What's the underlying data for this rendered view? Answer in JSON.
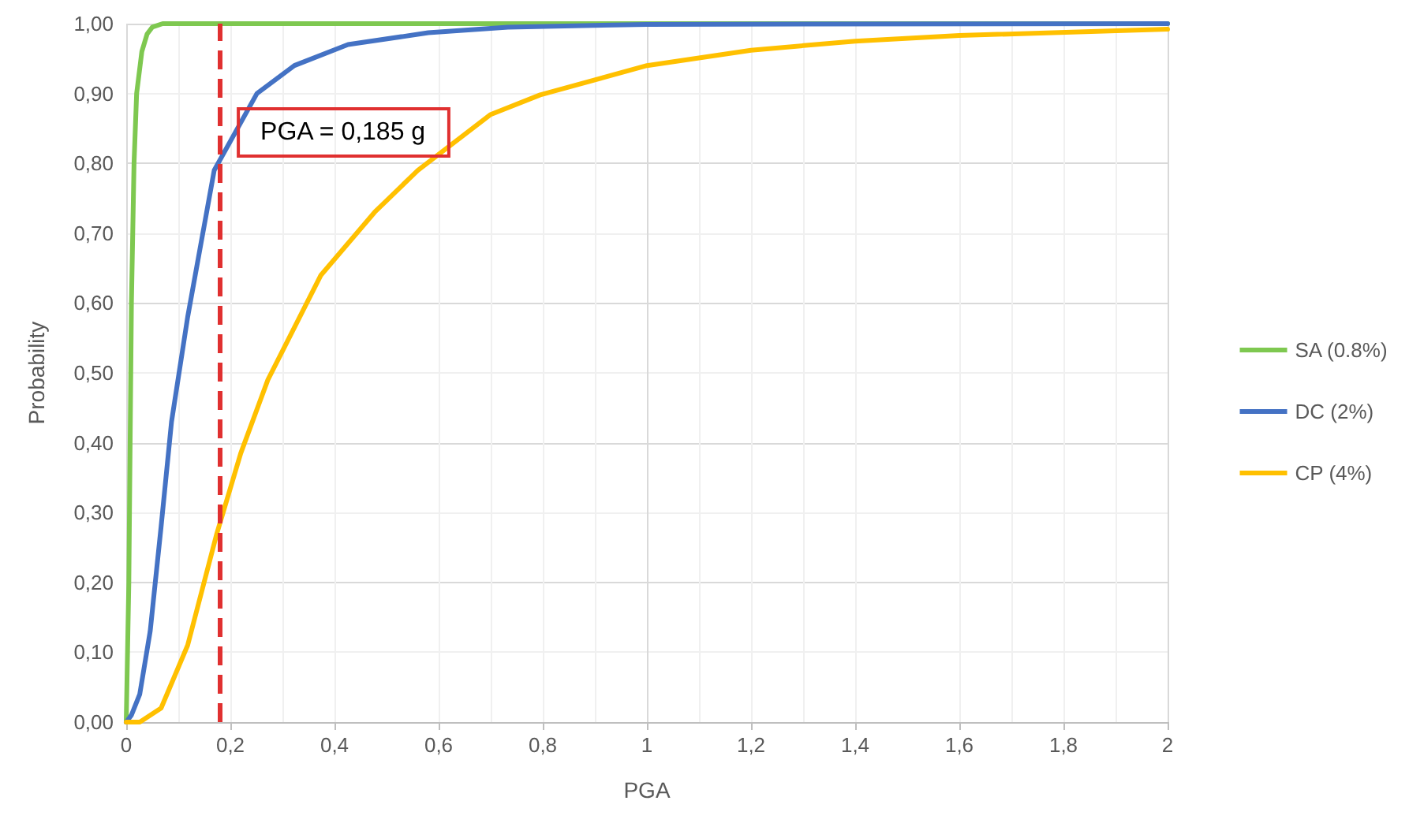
{
  "chart_data": {
    "type": "line",
    "xlabel": "PGA",
    "ylabel": "Probability",
    "xlim": [
      0,
      2
    ],
    "xticks": [
      0,
      {
        "value": 0.2,
        "label": "0,2"
      },
      {
        "value": 0.4,
        "label": "0,4"
      },
      {
        "value": 0.6,
        "label": "0,6"
      },
      {
        "value": 0.8,
        "label": "0,8"
      },
      1,
      {
        "value": 1.2,
        "label": "1,2"
      },
      {
        "value": 1.4,
        "label": "1,4"
      },
      {
        "value": 1.6,
        "label": "1,6"
      },
      {
        "value": 1.8,
        "label": "1,8"
      },
      2
    ],
    "ylim": [
      0,
      1
    ],
    "yticks": [
      {
        "value": 0,
        "label": "0,00"
      },
      {
        "value": 0.1,
        "label": "0,10"
      },
      {
        "value": 0.2,
        "label": "0,20"
      },
      {
        "value": 0.3,
        "label": "0,30"
      },
      {
        "value": 0.4,
        "label": "0,40"
      },
      {
        "value": 0.5,
        "label": "0,50"
      },
      {
        "value": 0.6,
        "label": "0,60"
      },
      {
        "value": 0.7,
        "label": "0,70"
      },
      {
        "value": 0.8,
        "label": "0,80"
      },
      {
        "value": 0.9,
        "label": "0,90"
      },
      {
        "value": 1,
        "label": "1,00"
      }
    ],
    "grid": true,
    "legend": "right",
    "marker": "none",
    "line_style": "solid",
    "series": [
      {
        "name": "SA (0.8%)",
        "color": "#7ec850",
        "x": [
          0,
          0.005,
          0.01,
          0.015,
          0.02,
          0.03,
          0.04,
          0.05,
          0.07,
          0.2,
          2
        ],
        "values": [
          0,
          0.2,
          0.6,
          0.8,
          0.9,
          0.96,
          0.985,
          0.995,
          1,
          1,
          1
        ]
      },
      {
        "name": "DC (2%)",
        "color": "#4472c4",
        "x": [
          0,
          0.01,
          0.026,
          0.046,
          0.067,
          0.087,
          0.118,
          0.169,
          0.251,
          0.323,
          0.426,
          0.58,
          0.733,
          1,
          2
        ],
        "values": [
          0,
          0.01,
          0.04,
          0.13,
          0.28,
          0.43,
          0.58,
          0.79,
          0.9,
          0.94,
          0.97,
          0.987,
          0.995,
          0.999,
          1
        ]
      },
      {
        "name": "CP (4%)",
        "color": "#ffc000",
        "x": [
          0,
          0.026,
          0.067,
          0.118,
          0.174,
          0.22,
          0.272,
          0.374,
          0.477,
          0.56,
          0.7,
          0.795,
          1,
          1.2,
          1.4,
          1.6,
          2
        ],
        "values": [
          0,
          0,
          0.02,
          0.11,
          0.27,
          0.385,
          0.49,
          0.64,
          0.73,
          0.79,
          0.87,
          0.898,
          0.94,
          0.962,
          0.975,
          0.983,
          0.992
        ]
      }
    ],
    "ref_lines": [
      {
        "axis": "x",
        "value": 0.185,
        "label": "PGA = 0,185 g",
        "color": "#e03030",
        "line_style": "dashed"
      }
    ]
  }
}
